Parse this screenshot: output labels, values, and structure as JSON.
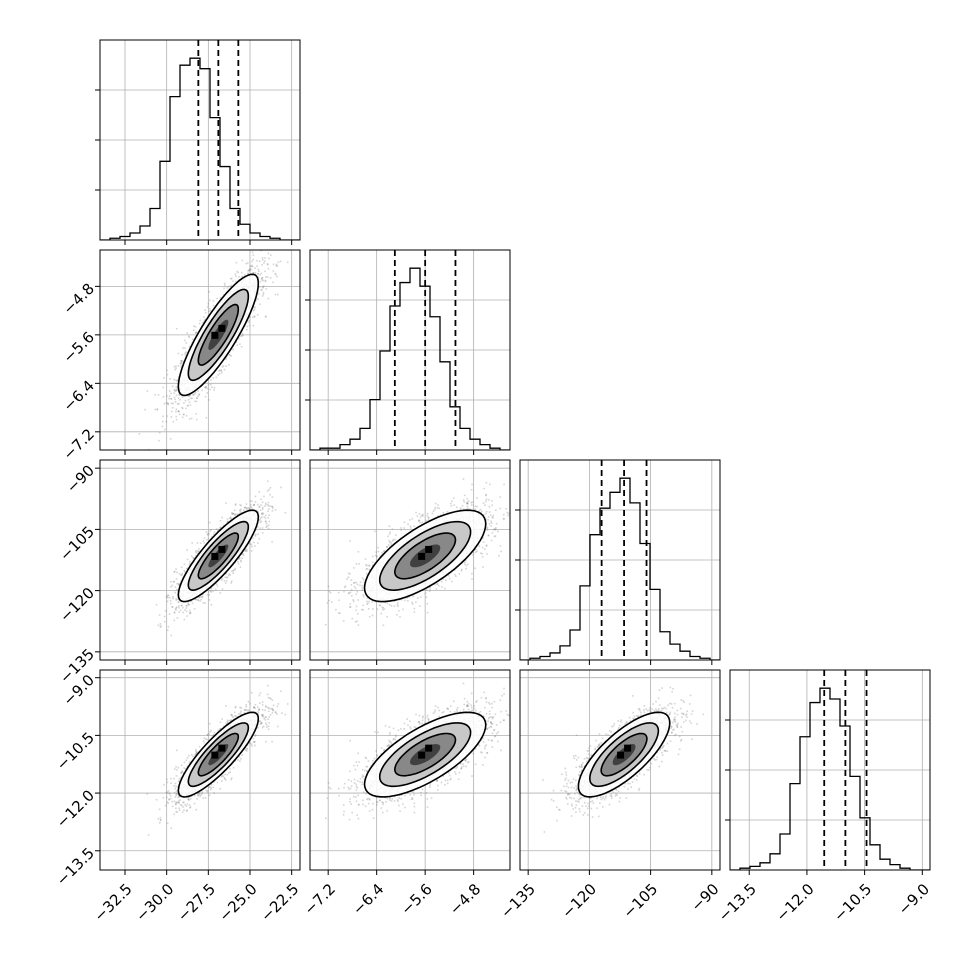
{
  "chart_data": {
    "type": "corner",
    "params": [
      {
        "id": "p0",
        "mean": -26.9,
        "sd": 1.2,
        "range": [
          -34,
          -22
        ],
        "ticks": [
          -32.5,
          -30.0,
          -27.5,
          -25.0,
          -22.5
        ],
        "tick_labels": [
          "−32.5",
          "−30.0",
          "−27.5",
          "−25.0",
          "−22.5"
        ],
        "quantiles": [
          -28.1,
          -26.9,
          -25.7
        ]
      },
      {
        "id": "p1",
        "mean": -5.6,
        "sd": 0.5,
        "range": [
          -7.5,
          -4.2
        ],
        "ticks": [
          -7.2,
          -6.4,
          -5.6,
          -4.8
        ],
        "tick_labels": [
          "−7.2",
          "−6.4",
          "−5.6",
          "−4.8"
        ],
        "quantiles": [
          -6.1,
          -5.6,
          -5.1
        ]
      },
      {
        "id": "p2",
        "mean": -111.5,
        "sd": 5.6,
        "range": [
          -137,
          -88
        ],
        "ticks": [
          -135,
          -120,
          -105,
          -90
        ],
        "tick_labels": [
          "−135",
          "−120",
          "−105",
          "−90"
        ],
        "quantiles": [
          -117,
          -111.5,
          -106
        ]
      },
      {
        "id": "p3",
        "mean": -11.0,
        "sd": 0.55,
        "range": [
          -14.0,
          -8.8
        ],
        "ticks": [
          -13.5,
          -12.0,
          -10.5,
          -9.0
        ],
        "tick_labels": [
          "−13.5",
          "−12.0",
          "−10.5",
          "−9.0"
        ],
        "quantiles": [
          -11.55,
          -11.0,
          -10.45
        ]
      }
    ],
    "correlations": [
      [
        1,
        0.85,
        0.85,
        0.85
      ],
      [
        0.85,
        1,
        0.7,
        0.7
      ],
      [
        0.85,
        0.7,
        1,
        0.75
      ],
      [
        0.85,
        0.7,
        0.75,
        1
      ]
    ],
    "histograms": [
      [
        0,
        1,
        2,
        4,
        8,
        18,
        45,
        82,
        100,
        104,
        98,
        70,
        42,
        18,
        9,
        4,
        2,
        1,
        0,
        0
      ],
      [
        0,
        1,
        1,
        3,
        6,
        12,
        28,
        55,
        80,
        93,
        101,
        91,
        74,
        49,
        24,
        12,
        6,
        3,
        1,
        0
      ],
      [
        0,
        1,
        2,
        4,
        8,
        17,
        42,
        71,
        86,
        95,
        103,
        89,
        66,
        40,
        16,
        9,
        5,
        2,
        1,
        0
      ],
      [
        0,
        1,
        2,
        4,
        9,
        20,
        48,
        74,
        93,
        101,
        95,
        80,
        52,
        29,
        14,
        6,
        3,
        1,
        0,
        0
      ]
    ],
    "contour_levels": [
      0.5,
      1.0,
      1.5,
      2.0
    ],
    "grid": true
  }
}
